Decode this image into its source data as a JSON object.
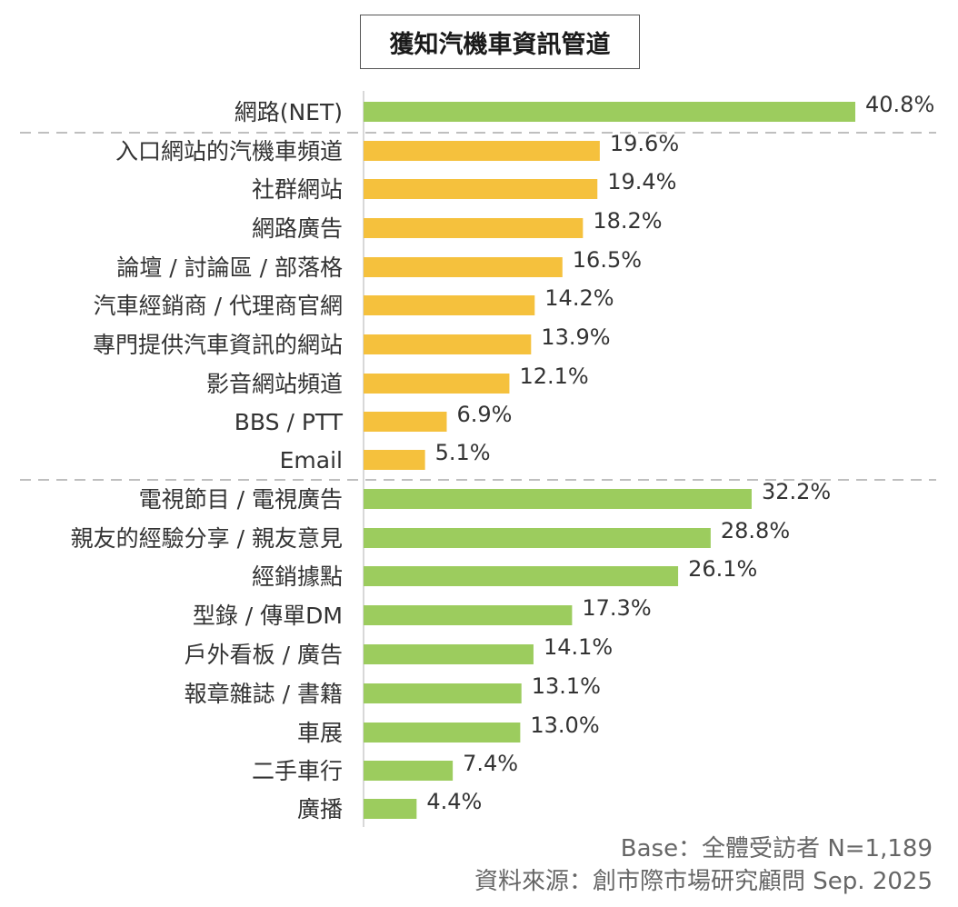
{
  "chart_data": {
    "type": "bar",
    "orientation": "horizontal",
    "title": "獲知汽機車資訊管道",
    "categories": [
      "網路(NET)",
      "入口網站的汽機車頻道",
      "社群網站",
      "網路廣告",
      "論壇 / 討論區 / 部落格",
      "汽車經銷商 / 代理商官網",
      "專門提供汽車資訊的網站",
      "影音網站頻道",
      "BBS / PTT",
      "Email",
      "電視節目 / 電視廣告",
      "親友的經驗分享 / 親友意見",
      "經銷據點",
      "型錄 / 傳單DM",
      "戶外看板 / 廣告",
      "報章雜誌 / 書籍",
      "車展",
      "二手車行",
      "廣播"
    ],
    "values": [
      40.8,
      19.6,
      19.4,
      18.2,
      16.5,
      14.2,
      13.9,
      12.1,
      6.9,
      5.1,
      32.2,
      28.8,
      26.1,
      17.3,
      14.1,
      13.1,
      13.0,
      7.4,
      4.4
    ],
    "value_labels": [
      "40.8%",
      "19.6%",
      "19.4%",
      "18.2%",
      "16.5%",
      "14.2%",
      "13.9%",
      "12.1%",
      "6.9%",
      "5.1%",
      "32.2%",
      "28.8%",
      "26.1%",
      "17.3%",
      "14.1%",
      "13.1%",
      "13.0%",
      "7.4%",
      "4.4%"
    ],
    "bar_groups": [
      "green",
      "yellow",
      "yellow",
      "yellow",
      "yellow",
      "yellow",
      "yellow",
      "yellow",
      "yellow",
      "yellow",
      "green",
      "green",
      "green",
      "green",
      "green",
      "green",
      "green",
      "green",
      "green"
    ],
    "colors": {
      "green": "#9ccc5e",
      "yellow": "#f5c13d",
      "divider": "#aaaaaa",
      "axis": "#cccccc"
    },
    "xlim": [
      0,
      40.8
    ],
    "grid": false,
    "legend": "none"
  },
  "footer": {
    "base": "Base：全體受訪者 N=1,189",
    "source": "資料來源：創市際市場研究顧問 Sep. 2025"
  }
}
